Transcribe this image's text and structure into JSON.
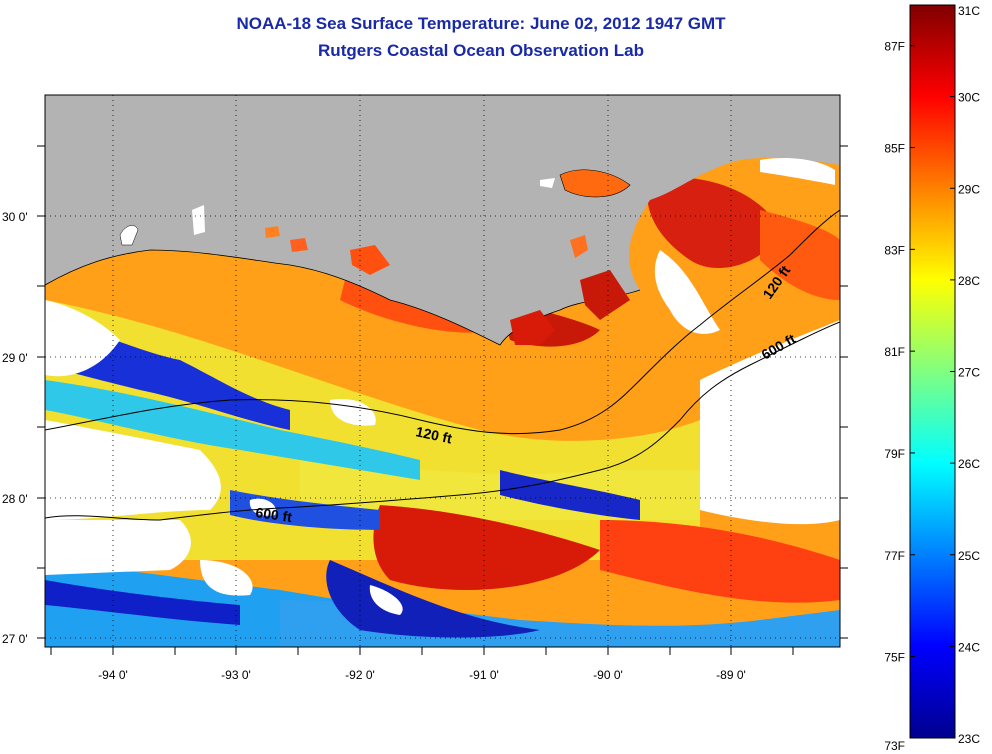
{
  "title": "NOAA-18 Sea Surface Temperature:  June 02, 2012 1947 GMT",
  "subtitle": "Rutgers Coastal Ocean Observation Lab",
  "map": {
    "lon_labels": [
      "-94 0'",
      "-93 0'",
      "-92 0'",
      "-91 0'",
      "-90 0'",
      "-89 0'"
    ],
    "lat_labels": [
      "30 0'",
      "29 0'",
      "28 0'",
      "27 0'"
    ],
    "contour_labels": [
      "120 ft",
      "600 ft",
      "120 ft",
      "600 ft"
    ],
    "land_color": "#b3b3b3",
    "cloud_color": "#ffffff"
  },
  "colorbar": {
    "f_labels": [
      "87F",
      "85F",
      "83F",
      "81F",
      "79F",
      "77F",
      "75F",
      "73F"
    ],
    "c_labels": [
      "31C",
      "30C",
      "29C",
      "28C",
      "27C",
      "26C",
      "25C",
      "24C",
      "23C"
    ],
    "min_c": 23,
    "max_c": 31,
    "colors": [
      "#00008f",
      "#0000ff",
      "#0080ff",
      "#00ffff",
      "#80ff80",
      "#ffff00",
      "#ff8000",
      "#ff0000",
      "#800000"
    ]
  }
}
